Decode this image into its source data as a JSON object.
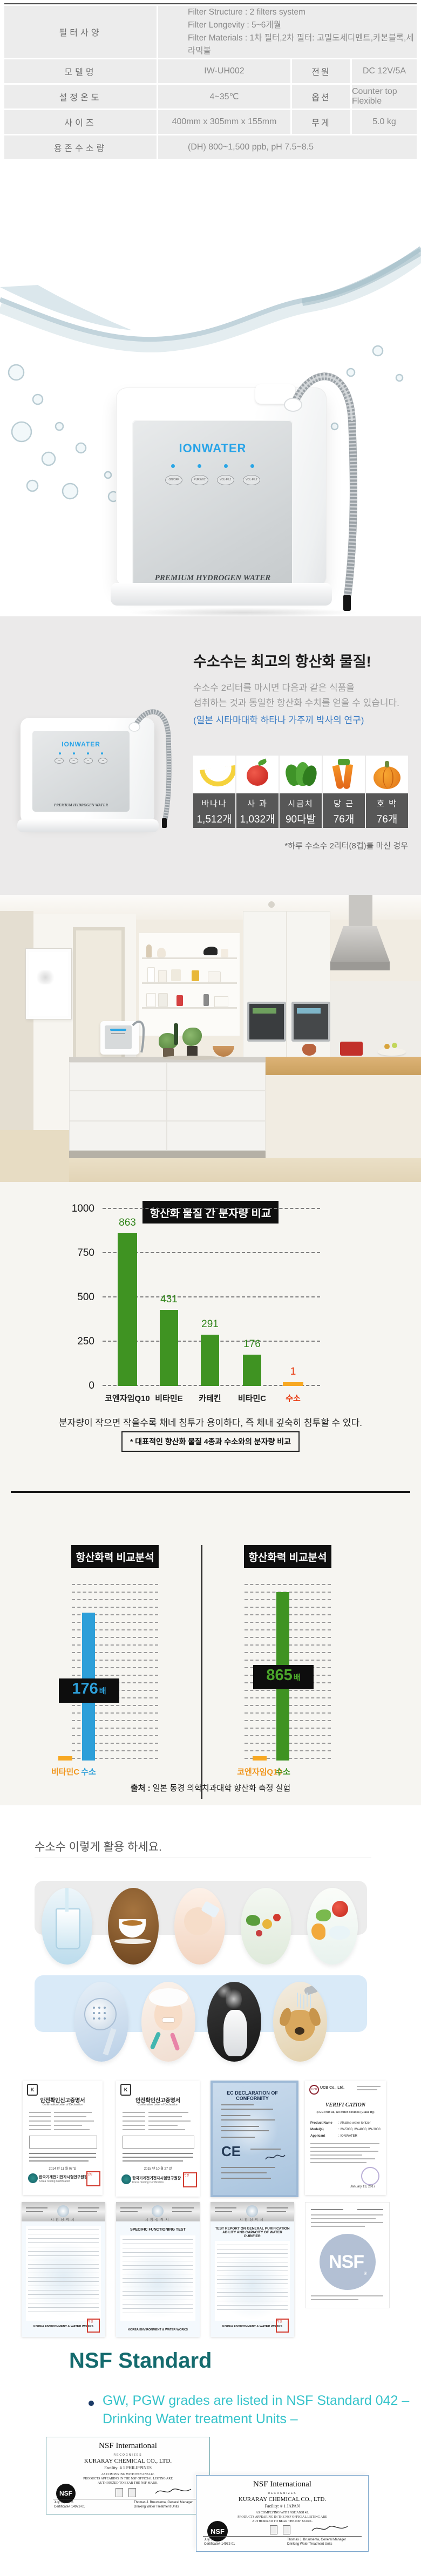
{
  "colors": {
    "accent_blue": "#2d9fd9",
    "green": "#3f9322",
    "orange": "#f7a823",
    "red": "#e8380d",
    "teal_title": "#156b6e",
    "cyan_text": "#35c3ca",
    "brand_blue": "#29a4e8",
    "label_orange": "#f0961e"
  },
  "spec_table": {
    "row1": {
      "label": "필터사양",
      "line1": "Filter Structure : 2 filters system",
      "line2": "Filter Longevity : 5~6개월",
      "line3": "Filter Materials :  1차 필터,2차 필터: 고밀도세디멘트,카본블록,세라믹볼"
    },
    "row2": {
      "label1": "모델명",
      "value1": "IW-UH002",
      "label2": "전원",
      "value2": "DC 12V/5A"
    },
    "row3": {
      "label1": "설정온도",
      "value1": "4~35℃",
      "label2": "옵션",
      "value2": "Counter top Flexible"
    },
    "row4": {
      "label1": "사이즈",
      "value1": "400mm x 305mm x 155mm",
      "label2": "무게",
      "value2": "5.0 kg"
    },
    "row5": {
      "label": "용존수소량",
      "value": "(DH) 800~1,500 ppb, pH 7.5~8.5"
    }
  },
  "hero": {
    "brand": "IONWATER",
    "tagline": "PREMIUM HYDROGEN WATER",
    "buttons": [
      "ON/OFF",
      "PURE/H2",
      "VOL·FIL1",
      "VOL·FIL2"
    ]
  },
  "intro": {
    "title": "수소수는 최고의 항산화 물질!",
    "desc1": "수소수 2리터를 마시면 다음과 같은 식품을",
    "desc2": "섭취하는 것과 동일한 항산화 수치를 얻을 수 있습니다.",
    "source": "(일본 시타마대학 하타나 가주끼 박사의 연구)",
    "foods": [
      {
        "name": "바나나",
        "count": "1,512개",
        "icon": "banana"
      },
      {
        "name": "사 과",
        "count": "1,032개",
        "icon": "apple"
      },
      {
        "name": "시금치",
        "count": "90다발",
        "icon": "spinach"
      },
      {
        "name": "당 근",
        "count": "76개",
        "icon": "carrot"
      },
      {
        "name": "호 박",
        "count": "76개",
        "icon": "pumpkin"
      }
    ],
    "note": "*하루 수소수 2리터(8컵)를 마신 경우"
  },
  "chart_data": [
    {
      "type": "bar",
      "title": "항산화 물질 간 분자량 비교",
      "categories": [
        "코엔자임Q10",
        "비타민E",
        "카테킨",
        "비타민C",
        "수소"
      ],
      "values": [
        863,
        431,
        291,
        176,
        1
      ],
      "ylim": [
        0,
        1000
      ],
      "yticks": [
        1000,
        750,
        500,
        250,
        0
      ],
      "grid": "dashed",
      "legend": "none",
      "highlight_index": 4,
      "colors": {
        "bar": "#3f9322",
        "highlight_bar": "#f7a823",
        "value_text": "#2f8418",
        "highlight_text": "#e8380d"
      },
      "caption": "분자량이 작으면 작을수록 채네 침투가 용이하다, 즉 체내 깊숙히 침투할 수 있다.",
      "footnote": "* 대표적인 향산화 물질 4종과 수소와의 분자량 비교"
    },
    {
      "type": "bar",
      "title": "항산화력 비교분석",
      "categories": [
        "비타민C",
        "수소"
      ],
      "values": [
        1,
        176
      ],
      "badge_number": "176",
      "badge_unit": "배",
      "bar_color": "#2d9fd9",
      "other_bar_color": "#f7a823"
    },
    {
      "type": "bar",
      "title": "항산화력 비교분석",
      "categories": [
        "코엔자임Q10",
        "수소"
      ],
      "values": [
        1,
        865
      ],
      "badge_number": "865",
      "badge_unit": "배",
      "bar_color": "#3f9322",
      "other_bar_color": "#f7a823"
    }
  ],
  "comparison_source": {
    "bold": "출처 :",
    "text": " 일본 동경 의학치과대학 향산화 측정 실험"
  },
  "usage": {
    "heading": "수소수 이렇게 활용 하세요.",
    "row1_photos": [
      "water-glass",
      "coffee-cup",
      "baby-drinking",
      "vegetables",
      "salad-splash"
    ],
    "row2_photos": [
      "shower-head",
      "woman-toothbrush",
      "humidifier-mist",
      "dog-bath"
    ]
  },
  "certs": {
    "row1": [
      {
        "title": "안전확인신고증명서",
        "subtitle": "Confirmation Letter of Declaration",
        "date": "2014 년 11 월 07 일",
        "org_kr": "한국기계전기전자시험연구원장",
        "org_en": "Korea Testing Certification"
      },
      {
        "title": "안전확인신고증명서",
        "subtitle": "Confirmation Letter of Declaration",
        "date": "2015 년 10 월 27 일",
        "org_kr": "한국기계전기전자시험연구원장",
        "org_en": "Korea Testing Certification"
      },
      {
        "title": "EC DECLARATION OF CONFORMITY",
        "mark": "CE"
      },
      {
        "org": "UCB Co., Ltd.",
        "title": "VERIFI CATION",
        "subtitle": "(FCC Part 15, All other devices (Class B))",
        "f1_label": "Product Name",
        "f1": ": Alkaline water ionizer",
        "f2_label": "Model(s)",
        "f2": ": IW-5000, IW-4000, IW-3000",
        "f3_label": "Applicant",
        "f3": ": IONWATER",
        "date": "January 13, 2017"
      }
    ],
    "row2": [
      {
        "header": "시험성적서",
        "title": "",
        "footer": "KOREA ENVIRONMENT & WATER WORKS"
      },
      {
        "header": "시험성적서",
        "title": "SPECIFIC FUNCTIONING TEST",
        "footer": "KOREA ENVIRONMENT & WATER WORKS"
      },
      {
        "header": "시험성적서",
        "title": "TEST REPORT ON GENERAL PURIFICATION ABILITY AND CAPACITY OF WATER PURIFIER",
        "footer": "KOREA ENVIRONMENT & WATER WORKS"
      },
      {
        "logo": "NSF"
      }
    ]
  },
  "nsf": {
    "title": "NSF Standard",
    "bullet_line1": "GW, PGW grades are listed in NSF Standard 042 –",
    "bullet_line2": "Drinking Water treatment Units –",
    "cert1": {
      "header": "NSF International",
      "recognizes": "RECOGNIZES",
      "company": "KURARAY CHEMICAL CO., LTD.",
      "facility": "Facility: # 1 PHILIPPINES",
      "body1": "AS COMPLYING WITH NSF/ANSI 42.",
      "body2": "PRODUCTS APPEARING IN THE NSF OFFICIAL LISTING ARE",
      "body3": "AUTHORIZED TO BEAR THE NSF MARK.",
      "logo": "NSF",
      "date": "July 12, 2006",
      "cert_no": "Certificate# 14972-01",
      "signer": "Thomas J. Bruursema, General Manager",
      "dept": "Drinking Water Treatment Units"
    },
    "cert2": {
      "header": "NSF International",
      "recognizes": "RECOGNIZES",
      "company": "KURARAY CHEMICAL CO., LTD.",
      "facility": "Facility: # 1 JAPAN",
      "body1": "AS COMPLYING WITH NSF/ANSI 42.",
      "body2": "PRODUCTS APPEARING IN THE NSF OFFICIAL LISTING ARE",
      "body3": "AUTHORIZED TO BEAR THE NSF MARK.",
      "logo": "NSF",
      "date": "July 12, 2006",
      "cert_no": "Certificate# 14972-01",
      "signer": "Thomas J. Bruursema, General Manager",
      "dept": "Drinking Water Treatment Units"
    }
  }
}
